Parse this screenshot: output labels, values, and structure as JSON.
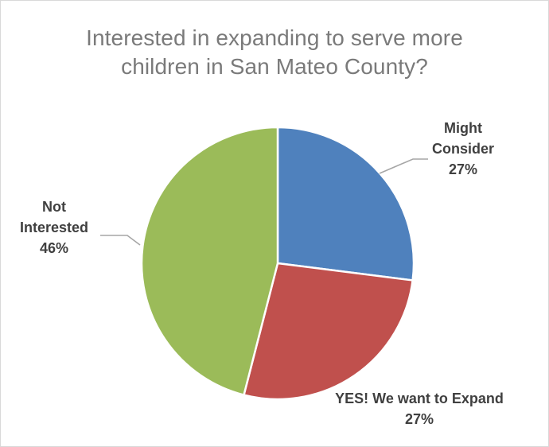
{
  "chart_data": {
    "type": "pie",
    "title": "Interested in expanding to serve more\nchildren in San Mateo County?",
    "slices": [
      {
        "label_lines": [
          "Might",
          "Consider"
        ],
        "value": 27,
        "percent_label": "27%",
        "color": "#4F81BD"
      },
      {
        "label_lines": [
          "YES! We want to Expand"
        ],
        "value": 27,
        "percent_label": "27%",
        "color": "#C0504D"
      },
      {
        "label_lines": [
          "Not",
          "Interested"
        ],
        "value": 46,
        "percent_label": "46%",
        "color": "#9BBB59"
      }
    ],
    "start_angle_deg": 0,
    "direction": "clockwise",
    "legend": "none",
    "data_labels": "outside with leader lines"
  }
}
